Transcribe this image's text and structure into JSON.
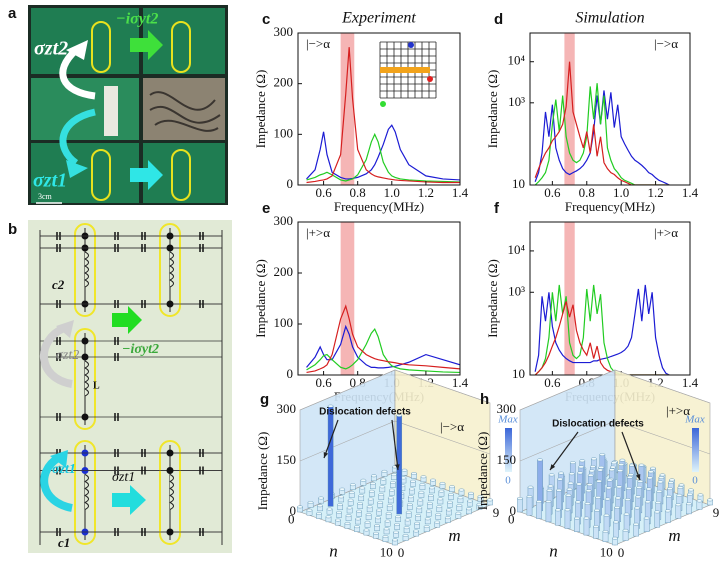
{
  "panels": {
    "a": {
      "label": "a",
      "upper_op": "σzt2",
      "top_op": "−iσyt2",
      "lower_op": "σzt1",
      "scale": "3cm"
    },
    "b": {
      "label": "b",
      "c2": "c2",
      "upper_op": "σzt2",
      "middle_op": "−iσyt2",
      "inductor": "L",
      "lower_op": "σzt1",
      "right_op": "σzt1",
      "c1": "c1"
    }
  },
  "chart_data": [
    {
      "type": "line",
      "panel": "c",
      "title": "Experiment",
      "label": "|−>α",
      "xlabel": "Frequency(MHz)",
      "ylabel": "Impedance (Ω)",
      "x": [
        0.5,
        0.55,
        0.58,
        0.6,
        0.62,
        0.65,
        0.7,
        0.73,
        0.75,
        0.77,
        0.8,
        0.85,
        0.88,
        0.9,
        0.92,
        0.95,
        0.98,
        1.0,
        1.02,
        1.05,
        1.1,
        1.2,
        1.3,
        1.4
      ],
      "series": [
        {
          "color": "#1c1cd4",
          "values": [
            12,
            30,
            70,
            105,
            60,
            25,
            15,
            12,
            12,
            13,
            15,
            22,
            30,
            40,
            55,
            80,
            110,
            118,
            105,
            70,
            40,
            18,
            12,
            10
          ]
        },
        {
          "color": "#22cc22",
          "values": [
            10,
            15,
            20,
            22,
            25,
            20,
            10,
            8,
            10,
            12,
            20,
            50,
            85,
            100,
            85,
            45,
            25,
            18,
            15,
            12,
            10,
            8,
            7,
            6
          ]
        },
        {
          "color": "#d61f1f",
          "values": [
            5,
            7,
            9,
            10,
            12,
            18,
            60,
            180,
            272,
            170,
            70,
            30,
            22,
            18,
            16,
            14,
            12,
            11,
            10,
            9,
            8,
            6,
            5,
            5
          ]
        }
      ],
      "xlim": [
        0.45,
        1.4
      ],
      "ylim": [
        0,
        300
      ],
      "xticks": [
        0.6,
        0.8,
        {
          "value": 1,
          "label": "1.0"
        },
        1.2,
        1.4
      ],
      "yticks": [
        0,
        100,
        200,
        300
      ],
      "highlight": [
        0.7,
        0.78
      ],
      "highlight_color": "#f5b5b5",
      "log_y": false
    },
    {
      "type": "line",
      "panel": "d",
      "title": "Simulation",
      "label": "|−>α",
      "xlabel": "Frequency(MHz)",
      "ylabel": "Impedance (Ω)",
      "x": [
        0.5,
        0.52,
        0.54,
        0.56,
        0.58,
        0.6,
        0.62,
        0.64,
        0.66,
        0.68,
        0.7,
        0.72,
        0.74,
        0.76,
        0.78,
        0.8,
        0.82,
        0.84,
        0.86,
        0.88,
        0.9,
        0.92,
        0.94,
        0.96,
        0.98,
        1.0,
        1.02,
        1.04,
        1.06,
        1.08,
        1.1,
        1.12,
        1.14,
        1.16,
        1.18,
        1.2,
        1.22,
        1.24,
        1.26,
        1.28
      ],
      "series": [
        {
          "color": "#1c1cd4",
          "values": [
            12,
            20,
            60,
            600,
            150,
            900,
            80,
            40,
            25,
            20,
            18,
            20,
            22,
            25,
            30,
            40,
            60,
            200,
            1500,
            300,
            2000,
            400,
            1800,
            250,
            900,
            150,
            100,
            70,
            50,
            40,
            35,
            30,
            25,
            20,
            18,
            15,
            13,
            12,
            11,
            10
          ]
        },
        {
          "color": "#22cc22",
          "values": [
            10,
            12,
            15,
            20,
            40,
            300,
            1200,
            200,
            1500,
            150,
            60,
            40,
            35,
            40,
            60,
            150,
            2500,
            400,
            3000,
            300,
            1500,
            80,
            40,
            25,
            20,
            15,
            13,
            12,
            11,
            10,
            10,
            10,
            10,
            10,
            10,
            10,
            10,
            10,
            10,
            10
          ]
        },
        {
          "color": "#d61f1f",
          "values": [
            15,
            25,
            40,
            60,
            80,
            120,
            150,
            200,
            300,
            800,
            10000,
            600,
            300,
            150,
            80,
            200,
            60,
            300,
            50,
            150,
            35,
            25,
            20,
            18,
            15,
            13,
            12,
            11,
            10,
            10,
            10,
            10,
            10,
            10,
            10,
            10,
            10,
            10,
            10,
            10
          ]
        }
      ],
      "xlim": [
        0.47,
        1.4
      ],
      "ylim": [
        10,
        50000
      ],
      "xticks": [
        0.6,
        0.8,
        {
          "value": 1,
          "label": "1.0"
        },
        1.2,
        1.4
      ],
      "yticks": [
        10,
        {
          "value": 1000,
          "label": "10³"
        },
        {
          "value": 10000,
          "label": "10⁴"
        }
      ],
      "highlight": [
        0.67,
        0.73
      ],
      "highlight_color": "#f5b5b5",
      "log_y": true
    },
    {
      "type": "line",
      "panel": "e",
      "label": "|+>α",
      "xlabel": "Frequency(MHz)",
      "ylabel": "Impedance (Ω)",
      "x": [
        0.5,
        0.55,
        0.58,
        0.6,
        0.62,
        0.65,
        0.7,
        0.73,
        0.75,
        0.77,
        0.8,
        0.85,
        0.88,
        0.9,
        0.92,
        0.95,
        0.98,
        1.0,
        1.02,
        1.05,
        1.1,
        1.2,
        1.3,
        1.4
      ],
      "series": [
        {
          "color": "#1c1cd4",
          "values": [
            15,
            35,
            55,
            40,
            30,
            30,
            60,
            95,
            80,
            55,
            35,
            20,
            15,
            15,
            14,
            14,
            15,
            16,
            17,
            20,
            25,
            40,
            30,
            20
          ]
        },
        {
          "color": "#22cc22",
          "values": [
            10,
            20,
            30,
            38,
            40,
            30,
            15,
            12,
            15,
            20,
            30,
            60,
            82,
            90,
            75,
            40,
            25,
            18,
            15,
            12,
            10,
            8,
            6,
            5
          ]
        },
        {
          "color": "#d61f1f",
          "values": [
            5,
            8,
            12,
            15,
            20,
            40,
            110,
            135,
            110,
            80,
            55,
            40,
            35,
            32,
            30,
            28,
            26,
            25,
            24,
            22,
            20,
            18,
            15,
            12
          ]
        }
      ],
      "xlim": [
        0.45,
        1.4
      ],
      "ylim": [
        0,
        300
      ],
      "xticks": [
        0.6,
        0.8,
        {
          "value": 1,
          "label": "1.0"
        },
        1.2,
        1.4
      ],
      "yticks": [
        0,
        100,
        200,
        300
      ],
      "highlight": [
        0.7,
        0.78
      ],
      "highlight_color": "#f5b5b5",
      "log_y": false
    },
    {
      "type": "line",
      "panel": "f",
      "label": "|+>α",
      "xlabel": "Frequency(MHz)",
      "ylabel": "Impedance (Ω)",
      "x": [
        0.5,
        0.52,
        0.54,
        0.56,
        0.58,
        0.6,
        0.62,
        0.64,
        0.66,
        0.68,
        0.7,
        0.72,
        0.74,
        0.76,
        0.78,
        0.8,
        0.82,
        0.84,
        0.86,
        0.88,
        0.9,
        0.92,
        0.94,
        0.96,
        0.98,
        1.0,
        1.02,
        1.04,
        1.06,
        1.08,
        1.1,
        1.12,
        1.14,
        1.16,
        1.18,
        1.2,
        1.22,
        1.24,
        1.26,
        1.28
      ],
      "series": [
        {
          "color": "#1c1cd4",
          "values": [
            12,
            30,
            800,
            200,
            1000,
            150,
            60,
            40,
            30,
            25,
            22,
            20,
            20,
            20,
            20,
            20,
            20,
            22,
            22,
            24,
            25,
            26,
            28,
            30,
            32,
            35,
            40,
            50,
            80,
            300,
            1200,
            200,
            1500,
            300,
            1000,
            80,
            30,
            15,
            11,
            10
          ]
        },
        {
          "color": "#22cc22",
          "values": [
            10,
            12,
            15,
            25,
            80,
            1000,
            200,
            1500,
            300,
            800,
            60,
            30,
            25,
            30,
            80,
            1200,
            200,
            1500,
            300,
            900,
            60,
            25,
            15,
            12,
            11,
            10,
            10,
            10,
            10,
            10,
            10,
            10,
            10,
            10,
            10,
            10,
            10,
            10,
            10,
            10
          ]
        },
        {
          "color": "#d61f1f",
          "values": [
            10,
            12,
            15,
            20,
            30,
            50,
            80,
            150,
            300,
            600,
            250,
            500,
            120,
            60,
            40,
            30,
            60,
            25,
            50,
            20,
            15,
            13,
            12,
            11,
            10,
            10,
            10,
            10,
            10,
            10,
            10,
            10,
            10,
            10,
            10,
            10,
            10,
            10,
            10,
            10
          ]
        }
      ],
      "xlim": [
        0.47,
        1.4
      ],
      "ylim": [
        10,
        50000
      ],
      "xticks": [
        0.6,
        0.8,
        {
          "value": 1,
          "label": "1.0"
        },
        1.2,
        1.4
      ],
      "yticks": [
        10,
        {
          "value": 1000,
          "label": "10³"
        },
        {
          "value": 10000,
          "label": "10⁴"
        }
      ],
      "highlight": [
        0.67,
        0.73
      ],
      "highlight_color": "#f5b5b5",
      "log_y": true
    },
    {
      "type": "bar3d",
      "panel": "g",
      "label": "|−>α",
      "annotation": "Dislocation defects",
      "zlabel": "Impedance (Ω)",
      "xlabel": "n",
      "ylabel": "m",
      "zlim": [
        0,
        300
      ],
      "zticks": [
        0,
        150,
        300
      ],
      "xticks": [
        0,
        10
      ],
      "yticks": [
        0,
        9
      ],
      "colorbar": [
        "Max",
        "0"
      ],
      "bar_colors": [
        "#dff4fb",
        "#3b66d8"
      ],
      "wall_colors": [
        "#cfe5f7",
        "#f7f1cf"
      ],
      "floor_color": "#d6f0f8",
      "values": [
        [
          15,
          15,
          15,
          15,
          15,
          15,
          15,
          15,
          15,
          15
        ],
        [
          15,
          15,
          295,
          15,
          15,
          15,
          15,
          15,
          15,
          15
        ],
        [
          15,
          15,
          15,
          15,
          15,
          15,
          15,
          15,
          15,
          15
        ],
        [
          15,
          15,
          15,
          15,
          15,
          15,
          15,
          15,
          15,
          15
        ],
        [
          15,
          15,
          15,
          15,
          15,
          15,
          15,
          15,
          15,
          15
        ],
        [
          15,
          15,
          15,
          15,
          15,
          15,
          15,
          15,
          15,
          15
        ],
        [
          15,
          15,
          15,
          15,
          290,
          15,
          15,
          15,
          15,
          15
        ],
        [
          15,
          15,
          15,
          15,
          15,
          15,
          15,
          15,
          15,
          15
        ],
        [
          15,
          15,
          15,
          15,
          15,
          15,
          15,
          15,
          15,
          15
        ],
        [
          15,
          15,
          15,
          15,
          15,
          15,
          15,
          15,
          15,
          15
        ],
        [
          15,
          15,
          15,
          15,
          15,
          15,
          15,
          15,
          15,
          15
        ]
      ]
    },
    {
      "type": "bar3d",
      "panel": "h",
      "label": "|+>α",
      "annotation": "Dislocation defects",
      "zlabel": "Impedance (Ω)",
      "xlabel": "n",
      "ylabel": "m",
      "zlim": [
        0,
        300
      ],
      "zticks": [
        0,
        150,
        300
      ],
      "xticks": [
        0,
        10
      ],
      "yticks": [
        0,
        9
      ],
      "colorbar": [
        "Max",
        "0"
      ],
      "bar_colors": [
        "#dff4fb",
        "#3b66d8"
      ],
      "wall_colors": [
        "#cfe5f7",
        "#f7f1cf"
      ],
      "floor_color": "#d6f0f8",
      "values": [
        [
          40,
          60,
          45,
          70,
          55,
          80,
          50,
          65,
          45,
          30
        ],
        [
          55,
          150,
          60,
          85,
          70,
          95,
          65,
          75,
          50,
          35
        ],
        [
          50,
          70,
          90,
          65,
          100,
          75,
          110,
          60,
          55,
          40
        ],
        [
          60,
          80,
          70,
          105,
          85,
          95,
          75,
          90,
          65,
          45
        ],
        [
          45,
          75,
          95,
          80,
          110,
          70,
          100,
          85,
          70,
          50
        ],
        [
          55,
          65,
          85,
          100,
          90,
          105,
          80,
          95,
          60,
          40
        ],
        [
          40,
          70,
          75,
          90,
          80,
          95,
          70,
          85,
          55,
          35
        ],
        [
          50,
          60,
          80,
          70,
          85,
          75,
          90,
          65,
          50,
          30
        ],
        [
          35,
          55,
          65,
          75,
          70,
          80,
          60,
          55,
          45,
          25
        ],
        [
          30,
          45,
          55,
          60,
          65,
          50,
          55,
          45,
          35,
          20
        ],
        [
          20,
          30,
          35,
          40,
          45,
          35,
          40,
          30,
          25,
          15
        ]
      ]
    }
  ]
}
